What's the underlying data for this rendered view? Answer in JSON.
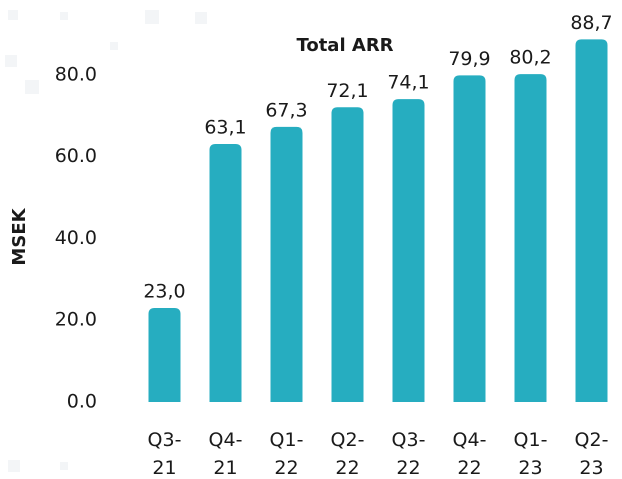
{
  "chart_data": {
    "type": "bar",
    "title": "Total ARR",
    "y_label": "MSEK",
    "categories": [
      "Q3-21",
      "Q4-21",
      "Q1-22",
      "Q2-22",
      "Q3-22",
      "Q4-22",
      "Q1-23",
      "Q2-23"
    ],
    "values": [
      23.0,
      63.1,
      67.3,
      72.1,
      74.1,
      79.9,
      80.2,
      88.7
    ],
    "value_labels": [
      "23,0",
      "63,1",
      "67,3",
      "72,1",
      "74,1",
      "79,9",
      "80,2",
      "88,7"
    ],
    "color": "#26adc0",
    "ylim": [
      0,
      90
    ],
    "yticks": [
      {
        "value": 0,
        "label": "0.0"
      },
      {
        "value": 20,
        "label": "20.0"
      },
      {
        "value": 40,
        "label": "40.0"
      },
      {
        "value": 60,
        "label": "60.0"
      },
      {
        "value": 80,
        "label": "80.0"
      }
    ]
  }
}
